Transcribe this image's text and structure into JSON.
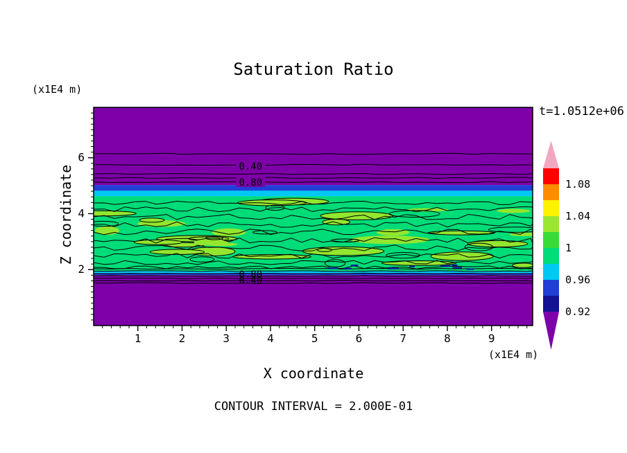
{
  "chart_data": {
    "type": "heatmap",
    "subtype": "filled-contour",
    "title": "Saturation Ratio",
    "xlabel": "X coordinate",
    "ylabel": "Z coordinate",
    "x_unit": "(x1E4 m)",
    "y_unit": "(x1E4 m)",
    "time_annotation": "t=1.0512e+06",
    "contour_interval_note": "CONTOUR INTERVAL = 2.000E-01",
    "contour_interval": 0.2,
    "xlim": [
      0,
      9.93
    ],
    "ylim": [
      0,
      7.8
    ],
    "x_ticks": [
      1,
      2,
      3,
      4,
      5,
      6,
      7,
      8,
      9
    ],
    "y_ticks": [
      2,
      4,
      6
    ],
    "x_minor_step": 0.2,
    "y_minor_step": 0.2,
    "description": "Horizontally layered saturation-ratio field: purple background (value < 0.92) above z=5 and below z=1.8, thin blue and cyan transition bands near z=5, and a noisy near-1.0 green layer with lighter green patches and wiggly black contour lines between z=2 and z=4.6",
    "colors": {
      "background_low": "#7D00A8",
      "band_blue": "#1F3FD8",
      "band_cyan": "#00C8F5",
      "band_green": "#00DC78",
      "patch_green": "#93E62E",
      "speck_navy": "#101A9E",
      "contour_line": "#000000"
    },
    "bands": [
      {
        "z_from": 7.8,
        "z_to": 5.02,
        "color_key": "background_low",
        "approx_value": "< 0.92"
      },
      {
        "z_from": 5.02,
        "z_to": 4.82,
        "color_key": "band_blue",
        "approx_value": "0.92 - 0.96"
      },
      {
        "z_from": 4.82,
        "z_to": 4.62,
        "color_key": "band_cyan",
        "approx_value": "0.96 - 0.98"
      },
      {
        "z_from": 4.62,
        "z_to": 1.95,
        "color_key": "band_green",
        "approx_value": "0.98 - 1.02 noisy"
      },
      {
        "z_from": 1.95,
        "z_to": 1.877,
        "color_key": "band_cyan",
        "approx_value": "0.96 - 0.98"
      },
      {
        "z_from": 1.877,
        "z_to": 1.8,
        "color_key": "band_blue",
        "approx_value": "0.92 - 0.96"
      },
      {
        "z_from": 1.8,
        "z_to": 0.0,
        "color_key": "background_low",
        "approx_value": "< 0.92"
      }
    ],
    "contour_lines_top_z": [
      6.14,
      5.75,
      5.42,
      5.28,
      5.13
    ],
    "contour_lines_bottom_z": [
      2.03,
      1.945,
      1.86,
      1.775,
      1.69,
      1.605,
      1.52
    ],
    "contour_labels": [
      {
        "text": "0.40",
        "x": 3.55,
        "z": 5.7,
        "bg": true
      },
      {
        "text": "0.80",
        "x": 3.55,
        "z": 5.13,
        "bg": true
      },
      {
        "text": "0.80",
        "x": 3.55,
        "z": 1.83,
        "bg": false
      },
      {
        "text": "0.40",
        "x": 3.55,
        "z": 1.62,
        "bg": false
      }
    ],
    "colorbar": {
      "labels": [
        {
          "text": "1.08",
          "boundary_index": 1
        },
        {
          "text": "1.04",
          "boundary_index": 3
        },
        {
          "text": "1",
          "boundary_index": 5
        },
        {
          "text": "0.96",
          "boundary_index": 7
        },
        {
          "text": "0.92",
          "boundary_index": 9
        }
      ],
      "segments_top_to_bottom": [
        {
          "color": "#FF0000",
          "value_range": "1.08 - 1.10"
        },
        {
          "color": "#FF8C00",
          "value_range": "1.06 - 1.08"
        },
        {
          "color": "#FFF200",
          "value_range": "1.04 - 1.06"
        },
        {
          "color": "#9BE62E",
          "value_range": "1.02 - 1.04"
        },
        {
          "color": "#37DC37",
          "value_range": "1.00 - 1.02"
        },
        {
          "color": "#00DC78",
          "value_range": "0.98 - 1.00"
        },
        {
          "color": "#00C8F5",
          "value_range": "0.96 - 0.98"
        },
        {
          "color": "#1F3FD8",
          "value_range": "0.94 - 0.96"
        },
        {
          "color": "#141295",
          "value_range": "0.92 - 0.94"
        }
      ],
      "top_arrow": {
        "color": "#F2A8C0",
        "value_range": "> 1.10"
      },
      "bottom_arrow": {
        "color": "#7D00A8",
        "value_range": "< 0.92"
      }
    }
  }
}
